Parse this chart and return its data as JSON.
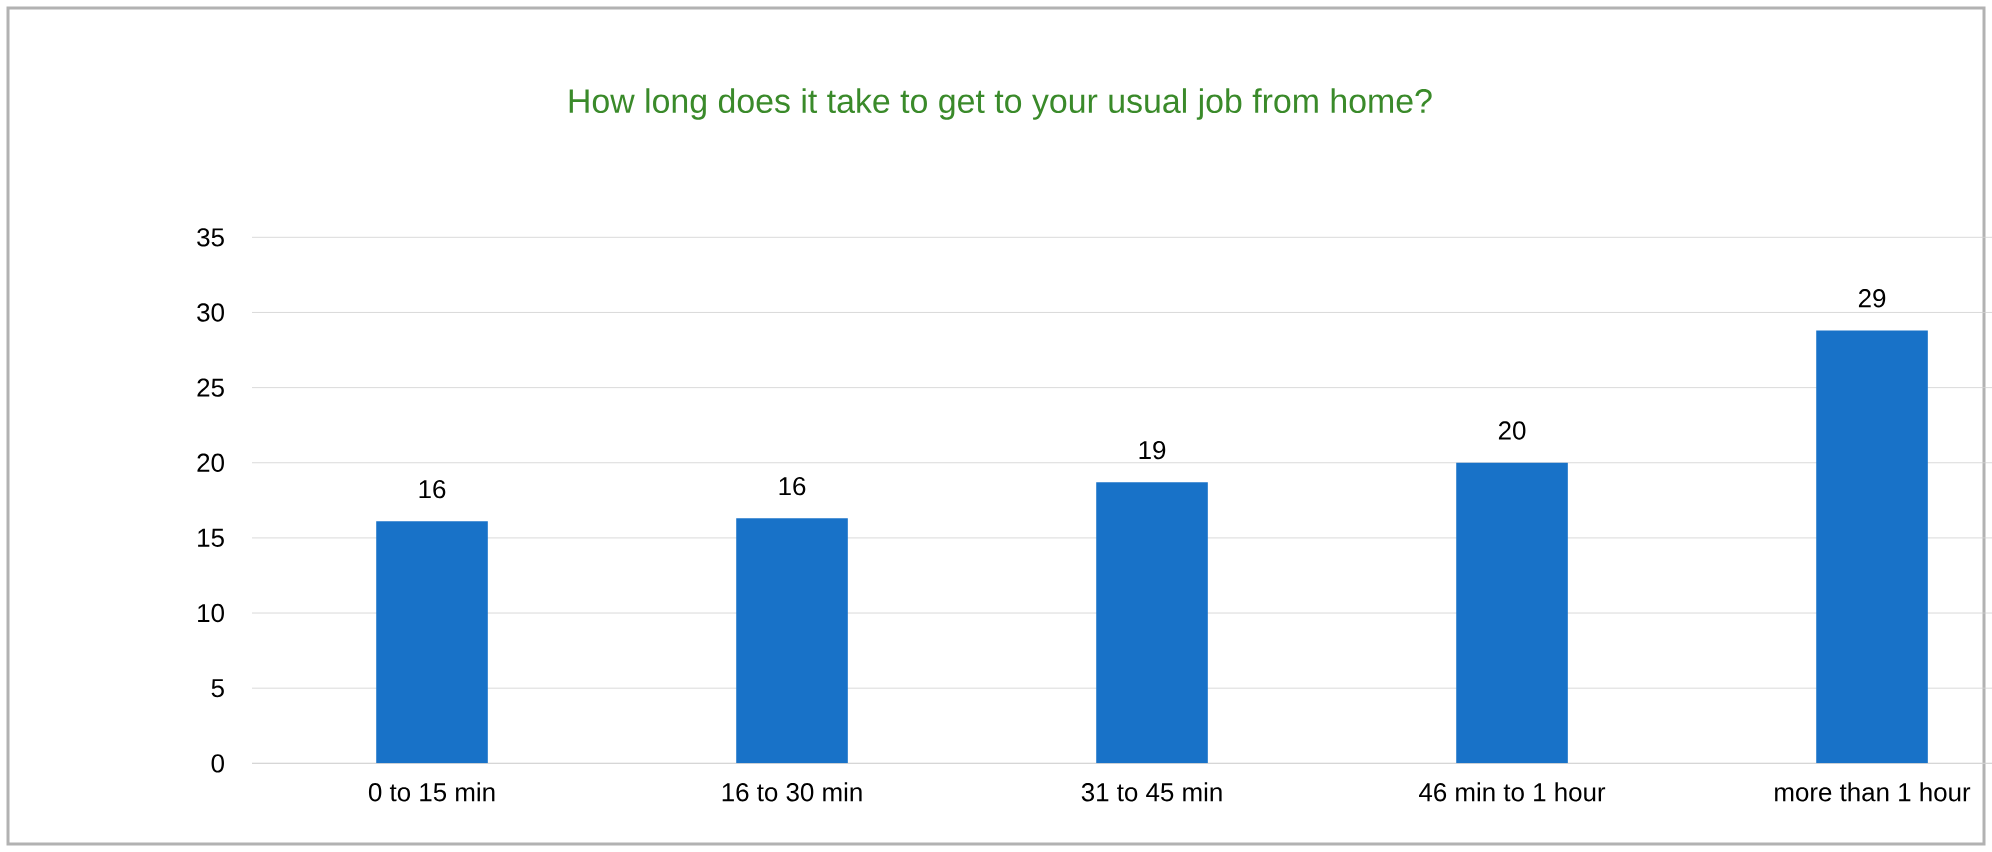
{
  "chart_data": {
    "type": "bar",
    "title": "How long does it take to get to your usual job from home?",
    "categories": [
      "0 to 15 min",
      "16 to 30 min",
      "31 to 45 min",
      "46 min to 1 hour",
      "more than 1 hour"
    ],
    "values": [
      16.1,
      16.3,
      18.7,
      20,
      28.8
    ],
    "value_labels": [
      "16",
      "16",
      "19",
      "20",
      "29"
    ],
    "color": "#1872c8",
    "ylim": [
      0,
      35
    ],
    "yticks": [
      0,
      5,
      10,
      15,
      20,
      25,
      30,
      35
    ],
    "grid": "y"
  }
}
